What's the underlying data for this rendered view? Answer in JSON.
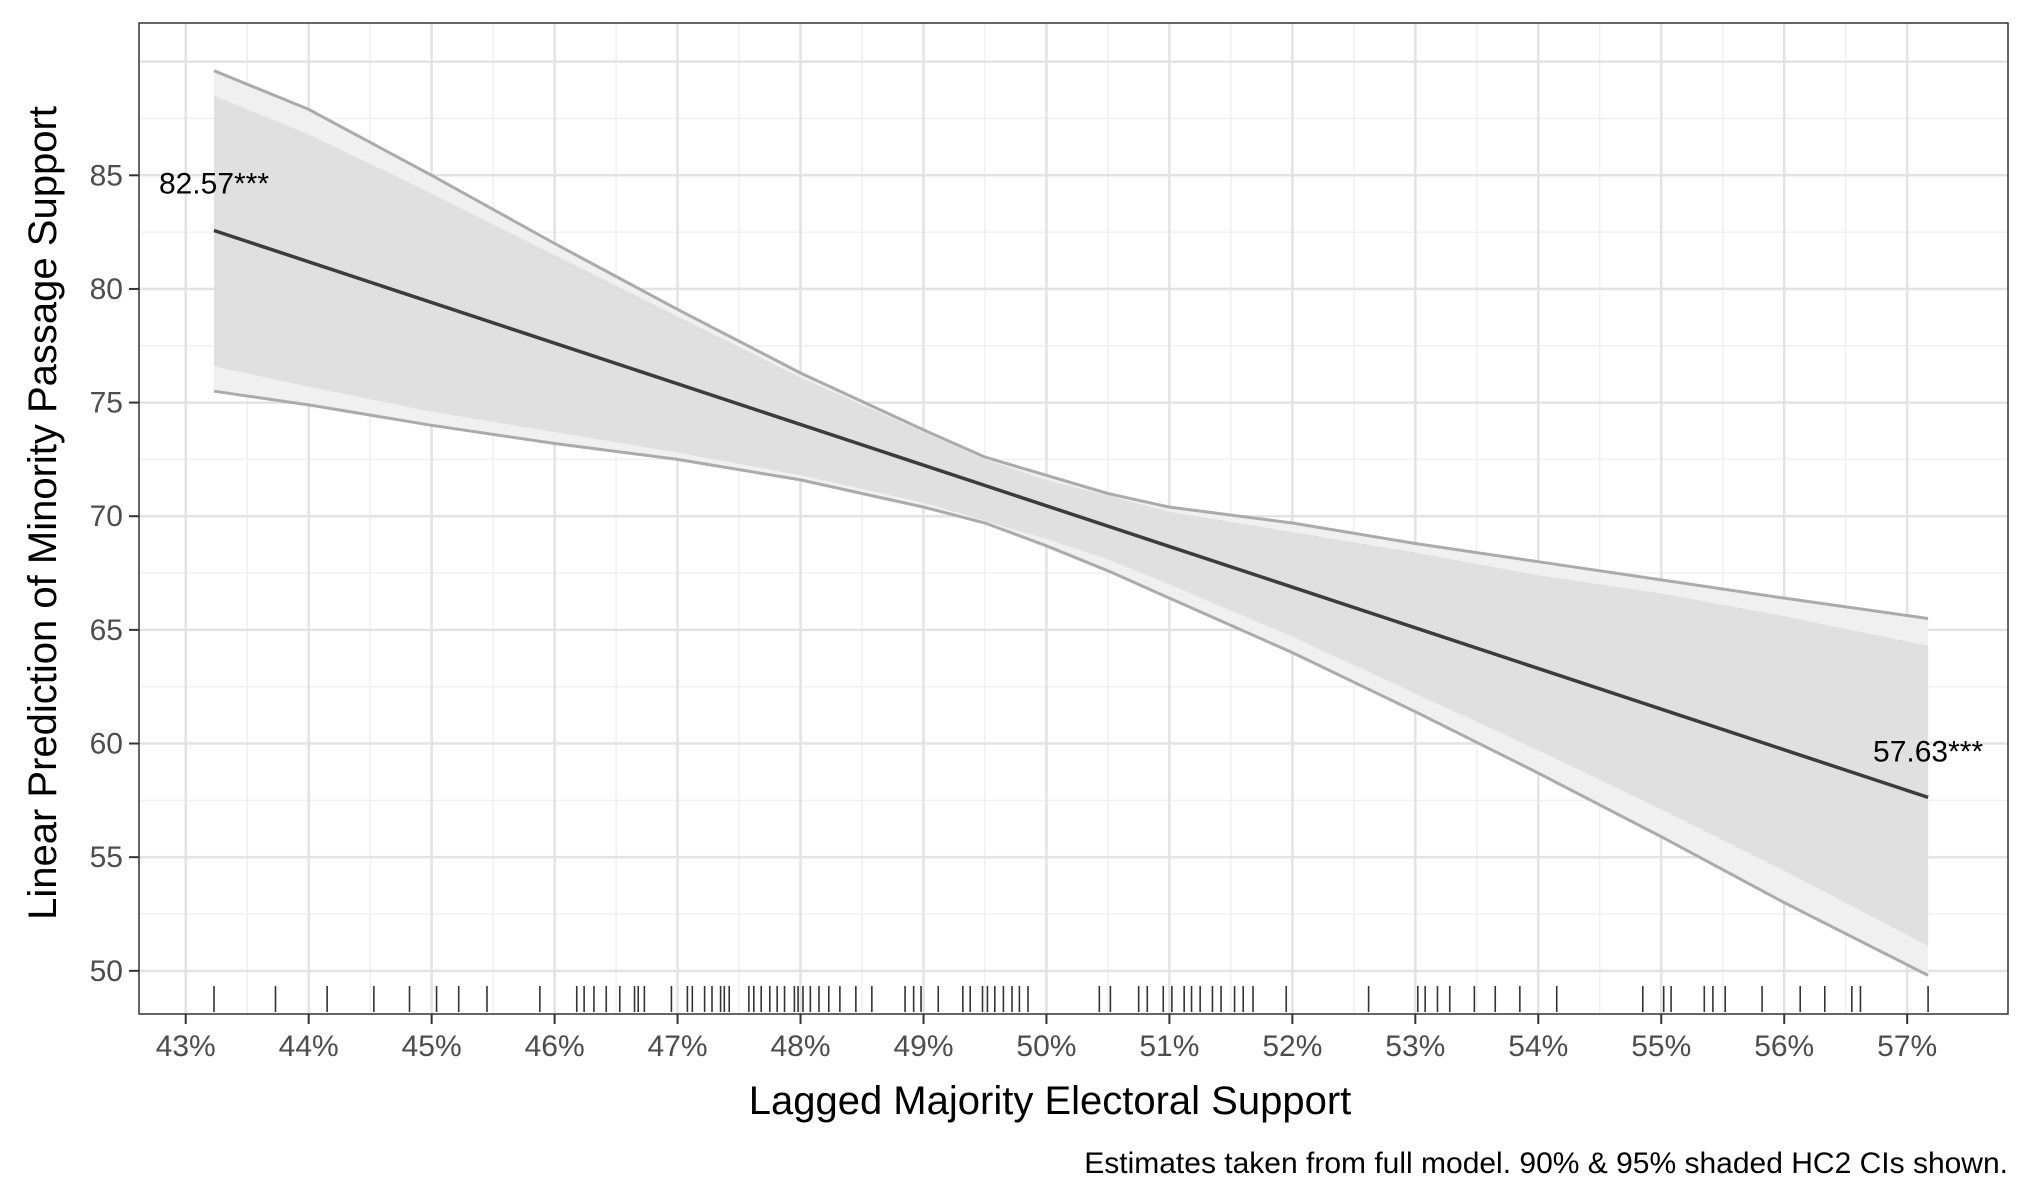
{
  "chart_data": {
    "type": "line",
    "xlabel": "Lagged Majority Electoral Support",
    "ylabel": "Linear Prediction of Minority Passage Support",
    "caption": "Estimates taken from full model. 90% & 95% shaded HC2 CIs shown.",
    "xlim": [
      0.4262,
      0.5782
    ],
    "ylim": [
      48.1,
      91.7
    ],
    "x_ticks": [
      0.43,
      0.44,
      0.45,
      0.46,
      0.47,
      0.48,
      0.49,
      0.5,
      0.51,
      0.52,
      0.53,
      0.54,
      0.55,
      0.56,
      0.57
    ],
    "x_tick_labels": [
      "43%",
      "44%",
      "45%",
      "46%",
      "47%",
      "48%",
      "49%",
      "50%",
      "51%",
      "52%",
      "53%",
      "54%",
      "55%",
      "56%",
      "57%"
    ],
    "y_ticks": [
      50,
      55,
      60,
      65,
      70,
      75,
      80,
      85
    ],
    "y_tick_labels": [
      "50",
      "55",
      "60",
      "65",
      "70",
      "75",
      "80",
      "85"
    ],
    "grid": true,
    "estimate": {
      "x": [
        0.4323,
        0.5717
      ],
      "y": [
        82.57,
        57.63
      ]
    },
    "ci95": {
      "x": [
        0.4323,
        0.44,
        0.45,
        0.46,
        0.47,
        0.48,
        0.49,
        0.495,
        0.5,
        0.505,
        0.51,
        0.52,
        0.53,
        0.54,
        0.55,
        0.56,
        0.5717
      ],
      "lower": [
        75.5,
        74.9,
        74.0,
        73.2,
        72.5,
        71.6,
        70.4,
        69.7,
        68.7,
        67.6,
        66.4,
        64.0,
        61.4,
        58.7,
        55.9,
        53.0,
        49.8
      ],
      "upper": [
        89.6,
        87.9,
        85.0,
        82.0,
        79.1,
        76.3,
        73.8,
        72.6,
        71.8,
        71.0,
        70.4,
        69.7,
        68.8,
        68.0,
        67.2,
        66.4,
        65.5
      ]
    },
    "ci90": {
      "x": [
        0.4323,
        0.44,
        0.45,
        0.46,
        0.47,
        0.48,
        0.49,
        0.495,
        0.5,
        0.505,
        0.51,
        0.52,
        0.53,
        0.54,
        0.55,
        0.56,
        0.5717
      ],
      "lower": [
        76.6,
        75.7,
        74.6,
        73.7,
        72.8,
        71.8,
        70.6,
        69.8,
        69.0,
        68.1,
        67.0,
        64.7,
        62.2,
        59.7,
        57.1,
        54.4,
        51.1
      ],
      "upper": [
        88.5,
        86.8,
        84.2,
        81.5,
        78.8,
        76.1,
        73.7,
        72.5,
        71.6,
        70.9,
        70.2,
        69.3,
        68.4,
        67.4,
        66.6,
        65.6,
        64.3
      ]
    },
    "rug": [
      0.4323,
      0.4373,
      0.4415,
      0.4453,
      0.4482,
      0.4504,
      0.4522,
      0.4545,
      0.4588,
      0.4618,
      0.4624,
      0.4632,
      0.4642,
      0.4653,
      0.4665,
      0.4668,
      0.4673,
      0.4695,
      0.4708,
      0.4712,
      0.4722,
      0.4728,
      0.4735,
      0.4738,
      0.4742,
      0.4758,
      0.4762,
      0.4768,
      0.4775,
      0.4781,
      0.4787,
      0.4795,
      0.4798,
      0.4802,
      0.4808,
      0.4815,
      0.4823,
      0.4832,
      0.4845,
      0.4858,
      0.4885,
      0.4892,
      0.4898,
      0.4912,
      0.4932,
      0.4938,
      0.4948,
      0.4952,
      0.4958,
      0.4965,
      0.4972,
      0.4978,
      0.4985,
      0.5043,
      0.5052,
      0.5075,
      0.5082,
      0.5095,
      0.5102,
      0.5112,
      0.5118,
      0.5125,
      0.5135,
      0.5142,
      0.5153,
      0.516,
      0.5168,
      0.5195,
      0.5262,
      0.5302,
      0.5308,
      0.5318,
      0.5328,
      0.5348,
      0.5365,
      0.5385,
      0.5415,
      0.5485,
      0.5502,
      0.5508,
      0.5535,
      0.5542,
      0.5552,
      0.5582,
      0.5613,
      0.5633,
      0.5655,
      0.5662,
      0.5717
    ],
    "annotations": [
      {
        "text": "82.57***",
        "x": 0.4323,
        "y": 84.2,
        "anchor": "middle"
      },
      {
        "text": "57.63***",
        "x": 0.5717,
        "y": 59.2,
        "anchor": "end"
      }
    ],
    "colors": {
      "ci95_fill": "#f0f0f0",
      "ci90_fill": "#e0e0e0",
      "ci_line": "#ababab",
      "estimate_line": "#3c3c3c",
      "grid_major": "#e3e3e3",
      "grid_minor": "#f0f0f0",
      "rug": "#333333"
    }
  }
}
